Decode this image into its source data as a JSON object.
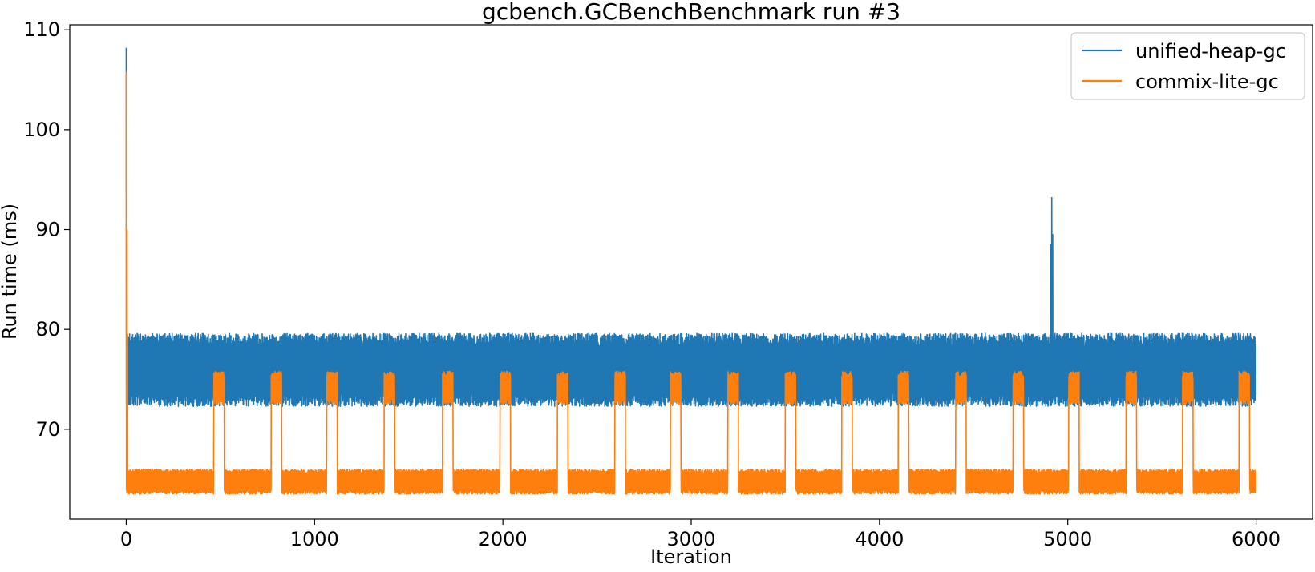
{
  "chart_data": {
    "type": "line",
    "title": "gcbench.GCBenchBenchmark run #3",
    "xlabel": "Iteration",
    "ylabel": "Run time (ms)",
    "xlim": [
      -300,
      6300
    ],
    "ylim": [
      61,
      110.5
    ],
    "x_ticks": [
      0,
      1000,
      2000,
      3000,
      4000,
      5000,
      6000
    ],
    "x_tick_labels": [
      "0",
      "1000",
      "2000",
      "3000",
      "4000",
      "5000",
      "6000"
    ],
    "y_ticks": [
      70,
      80,
      90,
      100,
      110
    ],
    "y_tick_labels": [
      "70",
      "80",
      "90",
      "100",
      "110"
    ],
    "grid": false,
    "legend_position": "top-right",
    "n_points": 6000,
    "series": [
      {
        "name": "unified-heap-gc",
        "color": "#1f77b4",
        "baseline_range": [
          72.3,
          79.6
        ],
        "warmup_spikes": [
          {
            "x": 0,
            "y": 108.2
          },
          {
            "x": 2,
            "y": 71.5
          }
        ],
        "spikes": [
          {
            "x": 4910,
            "y": 88.5
          },
          {
            "x": 4915,
            "y": 93.2
          },
          {
            "x": 4920,
            "y": 89.5
          }
        ]
      },
      {
        "name": "commix-lite-gc",
        "color": "#ff7f0e",
        "baseline_range": [
          63.5,
          66.0
        ],
        "elevated_range": [
          72.5,
          75.8
        ],
        "warmup_spikes": [
          {
            "x": 0,
            "y": 105.8
          },
          {
            "x": 4,
            "y": 90.0
          },
          {
            "x": 7,
            "y": 79.5
          }
        ],
        "elevated_segments": [
          [
            465,
            520
          ],
          [
            770,
            825
          ],
          [
            1065,
            1120
          ],
          [
            1370,
            1425
          ],
          [
            1680,
            1735
          ],
          [
            1985,
            2040
          ],
          [
            2290,
            2345
          ],
          [
            2595,
            2650
          ],
          [
            2890,
            2945
          ],
          [
            3195,
            3250
          ],
          [
            3500,
            3555
          ],
          [
            3800,
            3855
          ],
          [
            4100,
            4155
          ],
          [
            4405,
            4460
          ],
          [
            4710,
            4765
          ],
          [
            5005,
            5060
          ],
          [
            5310,
            5365
          ],
          [
            5610,
            5665
          ],
          [
            5910,
            5965
          ]
        ]
      }
    ]
  }
}
